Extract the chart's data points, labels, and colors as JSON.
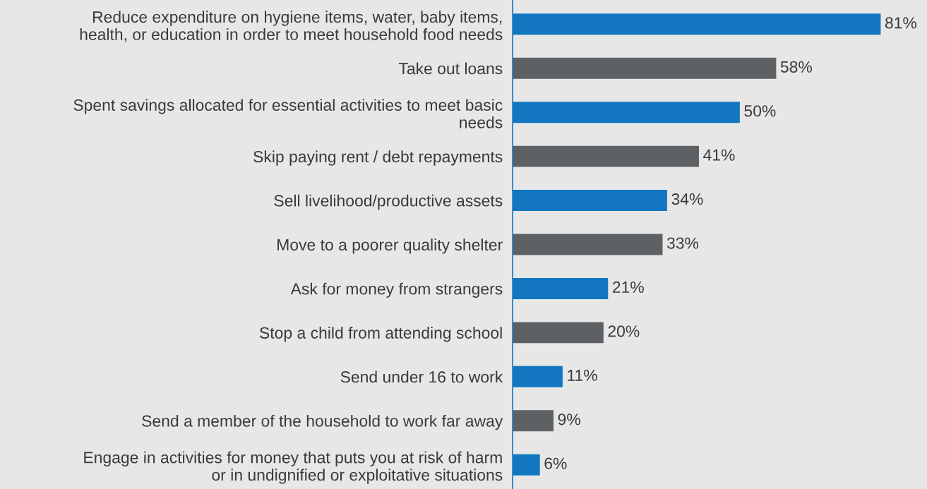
{
  "chart_data": {
    "type": "bar",
    "orientation": "horizontal",
    "categories": [
      "Reduce expenditure on hygiene items, water, baby items,\nhealth, or education in order to meet household food needs",
      "Take out loans",
      "Spent savings allocated for essential activities to meet basic\nneeds",
      "Skip paying rent / debt repayments",
      "Sell livelihood/productive assets",
      "Move to a poorer quality shelter",
      "Ask for money from strangers",
      "Stop a child from attending school",
      "Send under 16 to work",
      "Send a member of the household to work far away",
      "Engage in activities for money that puts you at risk of harm\nor in undignified or exploitative situations"
    ],
    "values": [
      81,
      58,
      50,
      41,
      34,
      33,
      21,
      20,
      11,
      9,
      6
    ],
    "value_labels": [
      "81%",
      "58%",
      "50%",
      "41%",
      "34%",
      "33%",
      "21%",
      "20%",
      "11%",
      "9%",
      "6%"
    ],
    "colors": [
      "#1277c0",
      "#5d6163",
      "#1277c0",
      "#5d6163",
      "#1277c0",
      "#5d6163",
      "#1277c0",
      "#5d6163",
      "#1277c0",
      "#5d6163",
      "#1277c0"
    ],
    "grid": false,
    "legend": false
  }
}
